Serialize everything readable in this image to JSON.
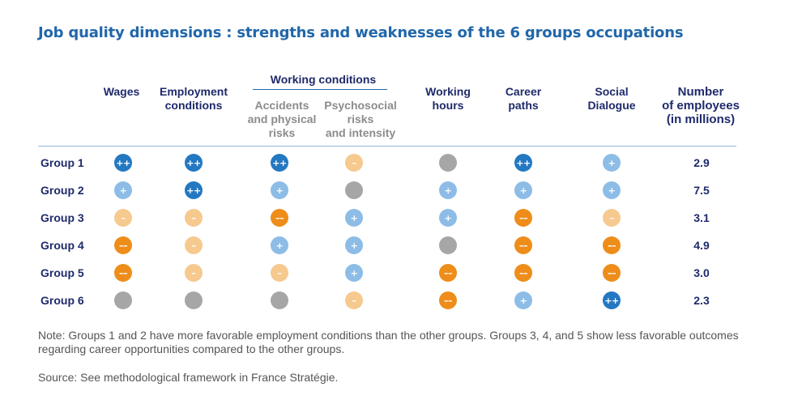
{
  "title": "Job quality dimensions : strengths and weaknesses of the 6 groups occupations",
  "header": {
    "wages": "Wages",
    "employment": [
      "Employment",
      "conditions"
    ],
    "working_conditions": "Working conditions",
    "accidents": [
      "Accidents",
      "and physical",
      "risks"
    ],
    "psychosocial": [
      "Psychosocial",
      "risks",
      "and intensity"
    ],
    "working_hours": [
      "Working",
      "hours"
    ],
    "career": [
      "Career",
      "paths"
    ],
    "social": [
      "Social",
      "Dialogue"
    ],
    "employees": [
      "Number",
      "of employees",
      "(in millions)"
    ]
  },
  "legend_colors": {
    "++": "#2378c2",
    "+": "#8dbde6",
    "0": "#a6a6a6",
    "-": "#f6c98f",
    "--": "#ee8d1a"
  },
  "chart_data": {
    "type": "table",
    "title": "Job quality dimensions : strengths and weaknesses of the 6 groups occupations",
    "columns": [
      "Wages",
      "Employment conditions",
      "Accidents and physical risks",
      "Psychosocial risks and intensity",
      "Working hours",
      "Career paths",
      "Social Dialogue"
    ],
    "column_group": {
      "name": "Working conditions",
      "columns": [
        "Accidents and physical risks",
        "Psychosocial risks and intensity"
      ]
    },
    "rows": [
      {
        "label": "Group 1",
        "ratings": [
          "++",
          "++",
          "++",
          "-",
          "0",
          "++",
          "+"
        ],
        "employees": "2.9"
      },
      {
        "label": "Group 2",
        "ratings": [
          "+",
          "++",
          "+",
          "0",
          "+",
          "+",
          "+"
        ],
        "employees": "7.5"
      },
      {
        "label": "Group 3",
        "ratings": [
          "-",
          "-",
          "--",
          "+",
          "+",
          "--",
          "-"
        ],
        "employees": "3.1"
      },
      {
        "label": "Group 4",
        "ratings": [
          "--",
          "-",
          "+",
          "+",
          "0",
          "--",
          "--"
        ],
        "employees": "4.9"
      },
      {
        "label": "Group 5",
        "ratings": [
          "--",
          "-",
          "-",
          "+",
          "--",
          "--",
          "--"
        ],
        "employees": "3.0"
      },
      {
        "label": "Group 6",
        "ratings": [
          "0",
          "0",
          "0",
          "-",
          "--",
          "+",
          "++"
        ],
        "employees": "2.3"
      }
    ],
    "value_column": "Number of employees (in millions)"
  },
  "note": "Note: Groups 1 and 2 have more favorable employment conditions than the other groups. Groups 3, 4, and 5 show less favorable outcomes regarding career opportunities compared to the other groups.",
  "source": "Source: See methodological framework in France Stratégie."
}
